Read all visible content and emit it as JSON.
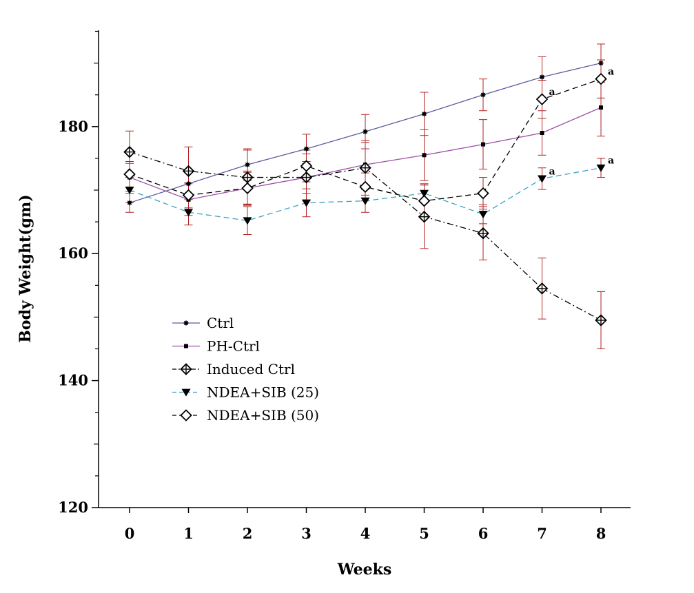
{
  "chart_data": {
    "type": "line",
    "title": "",
    "xlabel": "Weeks",
    "ylabel": "Body Weight(gm)",
    "xlim": [
      -0.5,
      8.5
    ],
    "ylim": [
      120,
      195
    ],
    "x": [
      0,
      1,
      2,
      3,
      4,
      5,
      6,
      7,
      8
    ],
    "x_tick_labels": [
      "0",
      "1",
      "2",
      "3",
      "4",
      "5",
      "6",
      "7",
      "8"
    ],
    "y_ticks": [
      120,
      140,
      160,
      180
    ],
    "y_tick_labels": [
      "120",
      "140",
      "160",
      "180"
    ],
    "legend_position": "lower-left",
    "error_bar_color": "#b22222",
    "series": [
      {
        "name": "Ctrl",
        "color": "#5b5b9f",
        "dash": "solid",
        "marker": "star",
        "values": [
          168.0,
          171.0,
          174.0,
          176.5,
          179.2,
          182.0,
          185.0,
          187.8,
          190.0
        ],
        "errors": [
          1.5,
          2.0,
          2.5,
          2.3,
          2.7,
          3.4,
          2.5,
          3.2,
          3.0
        ]
      },
      {
        "name": "PH-Ctrl",
        "color": "#9c4fa6",
        "dash": "solid",
        "marker": "square",
        "values": [
          172.0,
          168.5,
          170.3,
          172.0,
          174.0,
          175.5,
          177.2,
          179.0,
          183.0
        ],
        "errors": [
          2.2,
          2.5,
          2.7,
          2.5,
          3.5,
          4.0,
          3.9,
          3.5,
          4.5
        ]
      },
      {
        "name": "Induced Ctrl",
        "color": "#000000",
        "dash": "dashdot",
        "marker": "crossed-diamond",
        "values": [
          176.0,
          173.0,
          172.0,
          172.0,
          173.5,
          165.8,
          163.2,
          154.5,
          149.5
        ],
        "errors": [
          3.3,
          3.8,
          4.3,
          3.7,
          4.3,
          5.0,
          4.2,
          4.8,
          4.5
        ]
      },
      {
        "name": "NDEA+SIB (25)",
        "color": "#3aa3c0",
        "dash": "dashed",
        "marker": "triangle-down",
        "values": [
          170.0,
          166.5,
          165.2,
          168.0,
          168.3,
          169.5,
          166.2,
          171.8,
          173.5
        ],
        "errors": [
          2.0,
          2.0,
          2.2,
          2.2,
          1.8,
          1.5,
          1.5,
          1.7,
          1.5
        ],
        "annotation": "a",
        "annotation_indices": [
          7,
          8
        ]
      },
      {
        "name": "NDEA+SIB (50)",
        "color": "#000000",
        "dash": "dashed",
        "marker": "open-diamond",
        "values": [
          172.5,
          169.2,
          170.3,
          173.8,
          170.5,
          168.3,
          169.5,
          184.3,
          187.5
        ],
        "errors": [
          2.0,
          2.0,
          2.5,
          2.5,
          2.2,
          2.5,
          2.5,
          3.0,
          3.0
        ],
        "annotation": "a",
        "annotation_indices": [
          7,
          8
        ]
      }
    ]
  }
}
